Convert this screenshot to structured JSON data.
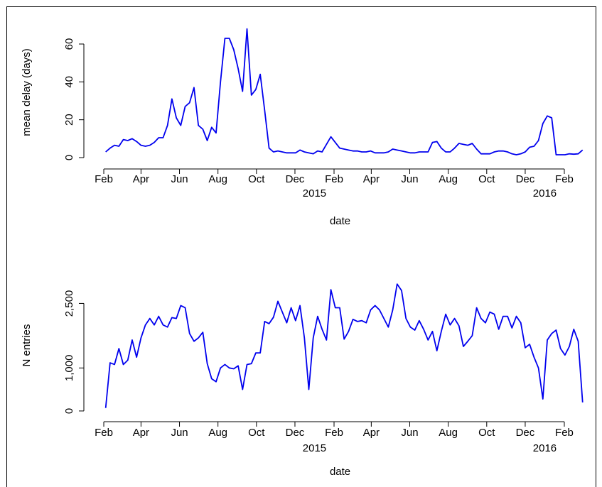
{
  "chart_data": [
    {
      "type": "line",
      "ylabel": "mean delay (days)",
      "xlabel": "date",
      "color": "#0000ee",
      "x": [
        34,
        41,
        48,
        55,
        62,
        69,
        76,
        83,
        90,
        97,
        104,
        111,
        118,
        125,
        132,
        139,
        146,
        153,
        160,
        167,
        174,
        181,
        188,
        195,
        202,
        209,
        216,
        223,
        230,
        237,
        244,
        251,
        258,
        265,
        272,
        279,
        286,
        293,
        300,
        307,
        314,
        321,
        328,
        335,
        342,
        349,
        356,
        363,
        370,
        377,
        384,
        391,
        398,
        405,
        412,
        419,
        426,
        433,
        440,
        447,
        454,
        461,
        468,
        475,
        482,
        489,
        496,
        503,
        510,
        517,
        524,
        531,
        538,
        545,
        552,
        559,
        566,
        573,
        580,
        587,
        594,
        601,
        608,
        615,
        622,
        629,
        636,
        643,
        650,
        657,
        664,
        671,
        678,
        685,
        692,
        699,
        706,
        713,
        720,
        727,
        734,
        741,
        748,
        755,
        762,
        769,
        776,
        783,
        790
      ],
      "values": [
        3,
        5,
        6.5,
        6,
        9.5,
        9,
        10,
        8.5,
        6.5,
        6,
        6.5,
        8,
        10.5,
        10.5,
        17,
        31,
        21,
        17,
        27,
        29,
        37,
        17,
        15,
        9,
        16,
        13,
        40,
        63,
        63,
        57,
        47,
        35,
        68,
        33,
        36,
        44,
        25,
        5,
        3,
        3.5,
        3,
        2.5,
        2.5,
        2.5,
        4,
        3,
        2.5,
        2,
        3.5,
        3,
        7,
        11,
        8,
        5,
        4.5,
        4,
        3.5,
        3.5,
        3,
        3,
        3.5,
        2.5,
        2.5,
        2.5,
        3,
        4.5,
        4,
        3.5,
        3,
        2.5,
        2.5,
        3,
        3,
        3,
        8,
        8.5,
        5,
        3,
        3,
        5,
        7.5,
        7,
        6.5,
        7.5,
        4.5,
        2,
        2,
        2,
        3,
        3.5,
        3.5,
        3,
        2,
        1.5,
        2,
        3,
        5.5,
        6,
        9,
        18,
        22,
        21,
        1.5,
        1.5,
        1.5,
        2,
        1.8,
        2,
        4
      ],
      "xlim": [
        0,
        800
      ],
      "ylim": [
        -3,
        72
      ],
      "yticks": [
        0,
        20,
        40,
        60
      ],
      "xticks": [
        {
          "value": 31,
          "label": "Feb"
        },
        {
          "value": 90,
          "label": "Apr"
        },
        {
          "value": 151,
          "label": "Jun"
        },
        {
          "value": 212,
          "label": "Aug"
        },
        {
          "value": 273,
          "label": "Oct"
        },
        {
          "value": 334,
          "label": "Dec"
        },
        {
          "value": 396,
          "label": "Feb"
        },
        {
          "value": 455,
          "label": "Apr"
        },
        {
          "value": 516,
          "label": "Jun"
        },
        {
          "value": 577,
          "label": "Aug"
        },
        {
          "value": 638,
          "label": "Oct"
        },
        {
          "value": 699,
          "label": "Dec"
        },
        {
          "value": 761,
          "label": "Feb"
        }
      ],
      "year_labels": [
        {
          "value": 365,
          "label": "2015"
        },
        {
          "value": 730,
          "label": "2016"
        }
      ]
    },
    {
      "type": "line",
      "ylabel": "N entries",
      "xlabel": "date",
      "color": "#0000ee",
      "x": [
        34,
        41,
        48,
        55,
        62,
        69,
        76,
        83,
        90,
        97,
        104,
        111,
        118,
        125,
        132,
        139,
        146,
        153,
        160,
        167,
        174,
        181,
        188,
        195,
        202,
        209,
        216,
        223,
        230,
        237,
        244,
        251,
        258,
        265,
        272,
        279,
        286,
        293,
        300,
        307,
        314,
        321,
        328,
        335,
        342,
        349,
        356,
        363,
        370,
        377,
        384,
        391,
        398,
        405,
        412,
        419,
        426,
        433,
        440,
        447,
        454,
        461,
        468,
        475,
        482,
        489,
        496,
        503,
        510,
        517,
        524,
        531,
        538,
        545,
        552,
        559,
        566,
        573,
        580,
        587,
        594,
        601,
        608,
        615,
        622,
        629,
        636,
        643,
        650,
        657,
        664,
        671,
        678,
        685,
        692,
        699,
        706,
        713,
        720,
        727,
        734,
        741,
        748,
        755,
        762,
        769,
        776,
        783,
        790
      ],
      "values": [
        70,
        1120,
        1080,
        1450,
        1080,
        1180,
        1650,
        1250,
        1700,
        2000,
        2150,
        2000,
        2200,
        2000,
        1950,
        2170,
        2150,
        2450,
        2400,
        1800,
        1620,
        1700,
        1830,
        1100,
        750,
        680,
        1000,
        1080,
        1000,
        980,
        1050,
        500,
        1080,
        1100,
        1350,
        1350,
        2080,
        2030,
        2180,
        2550,
        2300,
        2050,
        2400,
        2100,
        2450,
        1700,
        500,
        1700,
        2200,
        1900,
        1650,
        2820,
        2400,
        2400,
        1670,
        1850,
        2130,
        2080,
        2100,
        2050,
        2350,
        2450,
        2350,
        2150,
        1950,
        2350,
        2950,
        2800,
        2150,
        1950,
        1880,
        2100,
        1900,
        1650,
        1850,
        1400,
        1850,
        2250,
        2000,
        2150,
        1980,
        1500,
        1620,
        1750,
        2400,
        2150,
        2050,
        2300,
        2250,
        1900,
        2200,
        2200,
        1930,
        2200,
        2050,
        1470,
        1550,
        1250,
        1000,
        280,
        1650,
        1800,
        1880,
        1450,
        1300,
        1500,
        1900,
        1620,
        200
      ],
      "xlim": [
        0,
        800
      ],
      "ylim": [
        -150,
        3200
      ],
      "yticks": [
        0,
        {
          "value": 1000,
          "label": "1,000"
        },
        {
          "value": 2500,
          "label": "2,500"
        }
      ],
      "xticks": [
        {
          "value": 31,
          "label": "Feb"
        },
        {
          "value": 90,
          "label": "Apr"
        },
        {
          "value": 151,
          "label": "Jun"
        },
        {
          "value": 212,
          "label": "Aug"
        },
        {
          "value": 273,
          "label": "Oct"
        },
        {
          "value": 334,
          "label": "Dec"
        },
        {
          "value": 396,
          "label": "Feb"
        },
        {
          "value": 455,
          "label": "Apr"
        },
        {
          "value": 516,
          "label": "Jun"
        },
        {
          "value": 577,
          "label": "Aug"
        },
        {
          "value": 638,
          "label": "Oct"
        },
        {
          "value": 699,
          "label": "Dec"
        },
        {
          "value": 761,
          "label": "Feb"
        }
      ],
      "year_labels": [
        {
          "value": 365,
          "label": "2015"
        },
        {
          "value": 730,
          "label": "2016"
        }
      ]
    }
  ]
}
